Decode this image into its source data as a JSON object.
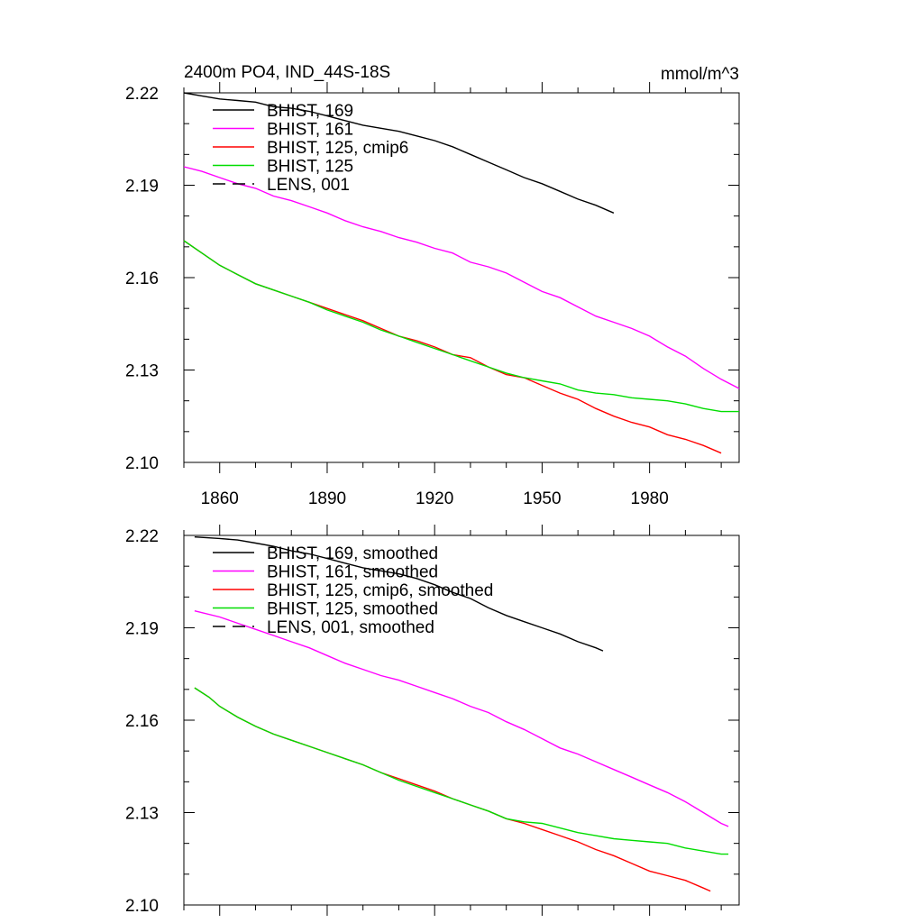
{
  "header": {
    "title": "2400m PO4, IND_44S-18S",
    "units": "mmol/m^3"
  },
  "chart_data": [
    {
      "type": "line",
      "panel": "top",
      "xlim": [
        1850,
        2005
      ],
      "ylim": [
        2.1,
        2.22
      ],
      "x_ticks": [
        1860,
        1890,
        1920,
        1950,
        1980
      ],
      "x_tick_labels": [
        "1860",
        "1890",
        "1920",
        "1950",
        "1980"
      ],
      "y_ticks": [
        2.1,
        2.13,
        2.16,
        2.19,
        2.22
      ],
      "y_tick_labels": [
        "2.10",
        "2.13",
        "2.16",
        "2.19",
        "2.22"
      ],
      "legend_position": "top-left",
      "series": [
        {
          "name": "BHIST, 169",
          "color": "#000000",
          "dash": "solid",
          "x": [
            1850,
            1855,
            1860,
            1865,
            1870,
            1875,
            1880,
            1885,
            1890,
            1895,
            1900,
            1905,
            1910,
            1915,
            1920,
            1925,
            1930,
            1935,
            1940,
            1945,
            1950,
            1955,
            1960,
            1965,
            1970
          ],
          "y": [
            2.22,
            2.219,
            2.218,
            2.2175,
            2.217,
            2.2155,
            2.215,
            2.214,
            2.2125,
            2.211,
            2.2095,
            2.2085,
            2.2075,
            2.206,
            2.2045,
            2.2025,
            2.2,
            2.1975,
            2.195,
            2.1925,
            2.1905,
            2.188,
            2.1855,
            2.1835,
            2.181
          ]
        },
        {
          "name": "BHIST, 161",
          "color": "#ff00ff",
          "dash": "solid",
          "x": [
            1850,
            1855,
            1860,
            1865,
            1870,
            1875,
            1880,
            1885,
            1890,
            1895,
            1900,
            1905,
            1910,
            1915,
            1920,
            1925,
            1930,
            1935,
            1940,
            1945,
            1950,
            1955,
            1960,
            1965,
            1970,
            1975,
            1980,
            1985,
            1990,
            1995,
            2000,
            2005
          ],
          "y": [
            2.196,
            2.1945,
            2.1925,
            2.1905,
            2.189,
            2.1865,
            2.185,
            2.183,
            2.181,
            2.1785,
            2.1765,
            2.175,
            2.173,
            2.1715,
            2.1695,
            2.168,
            2.165,
            2.1635,
            2.1615,
            2.1585,
            2.1555,
            2.1535,
            2.1505,
            2.1475,
            2.1455,
            2.1435,
            2.141,
            2.1375,
            2.1345,
            2.1305,
            2.127,
            2.124
          ]
        },
        {
          "name": "BHIST, 125, cmip6",
          "color": "#ff0000",
          "dash": "solid",
          "x": [
            1850,
            1855,
            1860,
            1865,
            1870,
            1875,
            1880,
            1885,
            1890,
            1895,
            1900,
            1905,
            1910,
            1915,
            1920,
            1925,
            1930,
            1935,
            1940,
            1945,
            1950,
            1955,
            1960,
            1965,
            1970,
            1975,
            1980,
            1985,
            1990,
            1995,
            2000
          ],
          "y": [
            2.172,
            2.168,
            2.164,
            2.161,
            2.158,
            2.156,
            2.154,
            2.152,
            2.15,
            2.148,
            2.146,
            2.1435,
            2.141,
            2.1395,
            2.1375,
            2.135,
            2.134,
            2.131,
            2.1285,
            2.1275,
            2.125,
            2.1225,
            2.1205,
            2.1175,
            2.115,
            2.113,
            2.1115,
            2.109,
            2.1075,
            2.1055,
            2.103
          ]
        },
        {
          "name": "BHIST, 125",
          "color": "#00dd00",
          "dash": "solid",
          "x": [
            1850,
            1855,
            1860,
            1865,
            1870,
            1875,
            1880,
            1885,
            1890,
            1895,
            1900,
            1905,
            1910,
            1915,
            1920,
            1925,
            1930,
            1935,
            1940,
            1945,
            1950,
            1955,
            1960,
            1965,
            1970,
            1975,
            1980,
            1985,
            1990,
            1995,
            2000,
            2005
          ],
          "y": [
            2.172,
            2.168,
            2.164,
            2.161,
            2.158,
            2.156,
            2.154,
            2.152,
            2.1495,
            2.1475,
            2.1455,
            2.143,
            2.141,
            2.139,
            2.137,
            2.135,
            2.133,
            2.131,
            2.129,
            2.1275,
            2.1265,
            2.1255,
            2.1235,
            2.1225,
            2.122,
            2.121,
            2.1205,
            2.12,
            2.119,
            2.1175,
            2.1165,
            2.1165
          ]
        },
        {
          "name": "LENS, 001",
          "color": "#000000",
          "dash": "dashed",
          "x": [],
          "y": []
        }
      ]
    },
    {
      "type": "line",
      "panel": "bottom",
      "xlim": [
        1850,
        2005
      ],
      "ylim": [
        2.1,
        2.22
      ],
      "x_ticks": [
        1860,
        1890,
        1920,
        1950,
        1980
      ],
      "y_ticks": [
        2.1,
        2.13,
        2.16,
        2.19,
        2.22
      ],
      "y_tick_labels": [
        "2.10",
        "2.13",
        "2.16",
        "2.19",
        "2.22"
      ],
      "legend_position": "top-left",
      "series": [
        {
          "name": "BHIST, 169, smoothed",
          "color": "#000000",
          "dash": "solid",
          "x": [
            1853,
            1860,
            1865,
            1870,
            1875,
            1880,
            1885,
            1890,
            1895,
            1900,
            1905,
            1910,
            1915,
            1920,
            1925,
            1930,
            1935,
            1940,
            1945,
            1950,
            1955,
            1960,
            1965,
            1967
          ],
          "y": [
            2.2195,
            2.219,
            2.2185,
            2.2175,
            2.2165,
            2.215,
            2.214,
            2.2125,
            2.211,
            2.2095,
            2.2085,
            2.2075,
            2.206,
            2.204,
            2.2015,
            2.1995,
            2.1965,
            2.194,
            2.192,
            2.19,
            2.188,
            2.1855,
            2.1835,
            2.1825
          ]
        },
        {
          "name": "BHIST, 161, smoothed",
          "color": "#ff00ff",
          "dash": "solid",
          "x": [
            1853,
            1860,
            1865,
            1870,
            1875,
            1880,
            1885,
            1890,
            1895,
            1900,
            1905,
            1910,
            1915,
            1920,
            1925,
            1930,
            1935,
            1940,
            1945,
            1950,
            1955,
            1960,
            1965,
            1970,
            1975,
            1980,
            1985,
            1990,
            1995,
            2000,
            2002
          ],
          "y": [
            2.1955,
            2.1935,
            2.1915,
            2.1895,
            2.1875,
            2.1855,
            2.1835,
            2.181,
            2.1785,
            2.1765,
            2.1745,
            2.173,
            2.171,
            2.169,
            2.167,
            2.1645,
            2.1625,
            2.1595,
            2.157,
            2.154,
            2.151,
            2.149,
            2.1465,
            2.144,
            2.1415,
            2.139,
            2.1365,
            2.1335,
            2.13,
            2.1265,
            2.1255
          ]
        },
        {
          "name": "BHIST, 125, cmip6, smoothed",
          "color": "#ff0000",
          "dash": "solid",
          "x": [
            1853,
            1857,
            1860,
            1865,
            1870,
            1875,
            1880,
            1885,
            1890,
            1895,
            1900,
            1905,
            1910,
            1915,
            1920,
            1925,
            1930,
            1935,
            1940,
            1945,
            1950,
            1955,
            1960,
            1965,
            1970,
            1975,
            1980,
            1985,
            1990,
            1995,
            1997
          ],
          "y": [
            2.1705,
            2.1675,
            2.1645,
            2.161,
            2.158,
            2.1555,
            2.1535,
            2.1515,
            2.1495,
            2.1475,
            2.1455,
            2.143,
            2.141,
            2.139,
            2.137,
            2.1345,
            2.1325,
            2.1305,
            2.128,
            2.1265,
            2.1245,
            2.1225,
            2.1205,
            2.118,
            2.116,
            2.1135,
            2.111,
            2.1095,
            2.108,
            2.1055,
            2.1045
          ]
        },
        {
          "name": "BHIST, 125, smoothed",
          "color": "#00dd00",
          "dash": "solid",
          "x": [
            1853,
            1857,
            1860,
            1865,
            1870,
            1875,
            1880,
            1885,
            1890,
            1895,
            1900,
            1905,
            1910,
            1915,
            1920,
            1925,
            1930,
            1935,
            1940,
            1945,
            1950,
            1955,
            1960,
            1965,
            1970,
            1975,
            1980,
            1985,
            1990,
            1995,
            2000,
            2002
          ],
          "y": [
            2.1705,
            2.1675,
            2.1645,
            2.161,
            2.158,
            2.1555,
            2.1535,
            2.1515,
            2.1495,
            2.1475,
            2.1455,
            2.143,
            2.1405,
            2.1385,
            2.1365,
            2.1345,
            2.1325,
            2.1305,
            2.128,
            2.127,
            2.1265,
            2.125,
            2.1235,
            2.1225,
            2.1215,
            2.121,
            2.1205,
            2.12,
            2.1185,
            2.1175,
            2.1165,
            2.1165
          ]
        },
        {
          "name": "LENS, 001, smoothed",
          "color": "#000000",
          "dash": "dashed",
          "x": [],
          "y": []
        }
      ]
    }
  ]
}
